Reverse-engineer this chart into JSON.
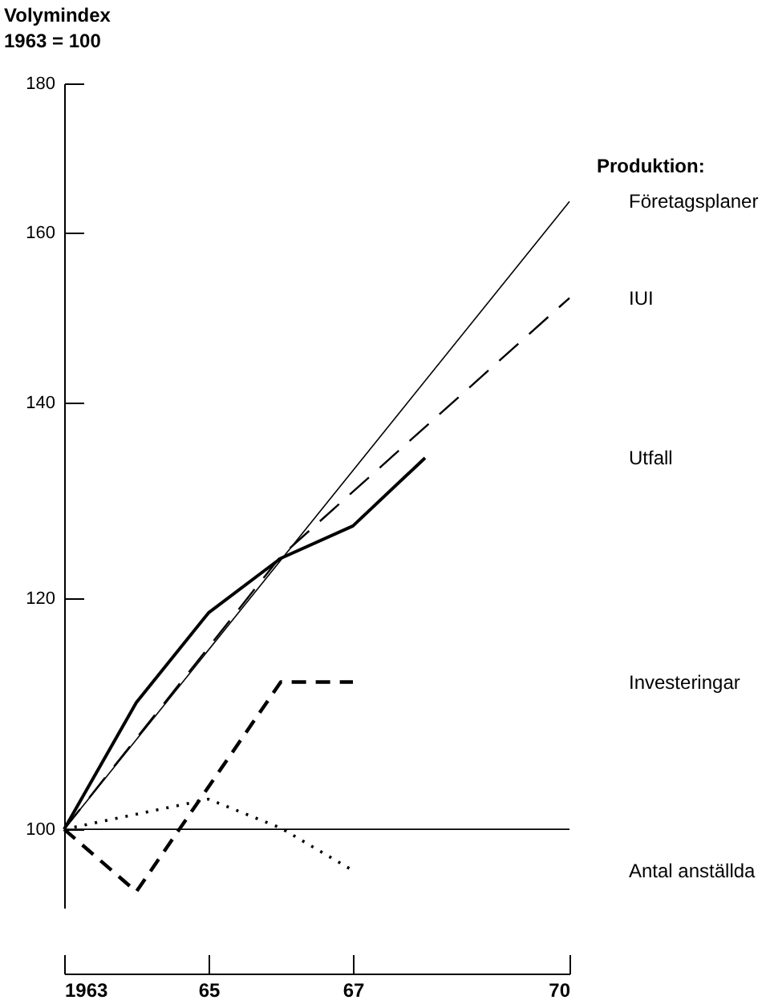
{
  "chart_data": {
    "type": "line",
    "ylabel": "Volymindex\n1963 = 100",
    "legend_title": "Produktion:",
    "legend": "right",
    "log": "y",
    "xlim": [
      1963,
      1970
    ],
    "xticks": [
      1963,
      {
        "value": 1965,
        "label": "65"
      },
      {
        "value": 1967,
        "label": "67"
      },
      {
        "value": 1970,
        "label": "70"
      }
    ],
    "ylim": [
      94,
      180
    ],
    "yticks": [
      100,
      120,
      140,
      160,
      180
    ],
    "grid": false,
    "ref_lines": [
      {
        "axis": "y",
        "value": 100,
        "color": "#000000",
        "line_style": "solid"
      }
    ],
    "series": [
      {
        "name": "Företagsplaner",
        "color": "#000000",
        "line_style": "solid",
        "x": [
          1963,
          1970
        ],
        "values": [
          100,
          164
        ]
      },
      {
        "name": "IUI",
        "color": "#000000",
        "line_style": "dashed",
        "x": [
          1963,
          1966,
          1970
        ],
        "values": [
          100,
          124,
          152
        ]
      },
      {
        "name": "Utfall",
        "color": "#000000",
        "line_style": "solid",
        "x": [
          1963,
          1964,
          1965,
          1966,
          1967,
          1968
        ],
        "values": [
          100,
          110.5,
          118.6,
          123.8,
          127,
          134
        ]
      },
      {
        "name": "Investeringar",
        "color": "#000000",
        "line_style": "dashed",
        "x": [
          1963,
          1964,
          1966,
          1967
        ],
        "values": [
          100,
          95.2,
          112.3,
          112.3
        ]
      },
      {
        "name": "Antal anställda",
        "color": "#000000",
        "line_style": "dotted",
        "x": [
          1963,
          1965,
          1966,
          1967
        ],
        "values": [
          100,
          102.4,
          100.1,
          96.8
        ]
      }
    ]
  }
}
